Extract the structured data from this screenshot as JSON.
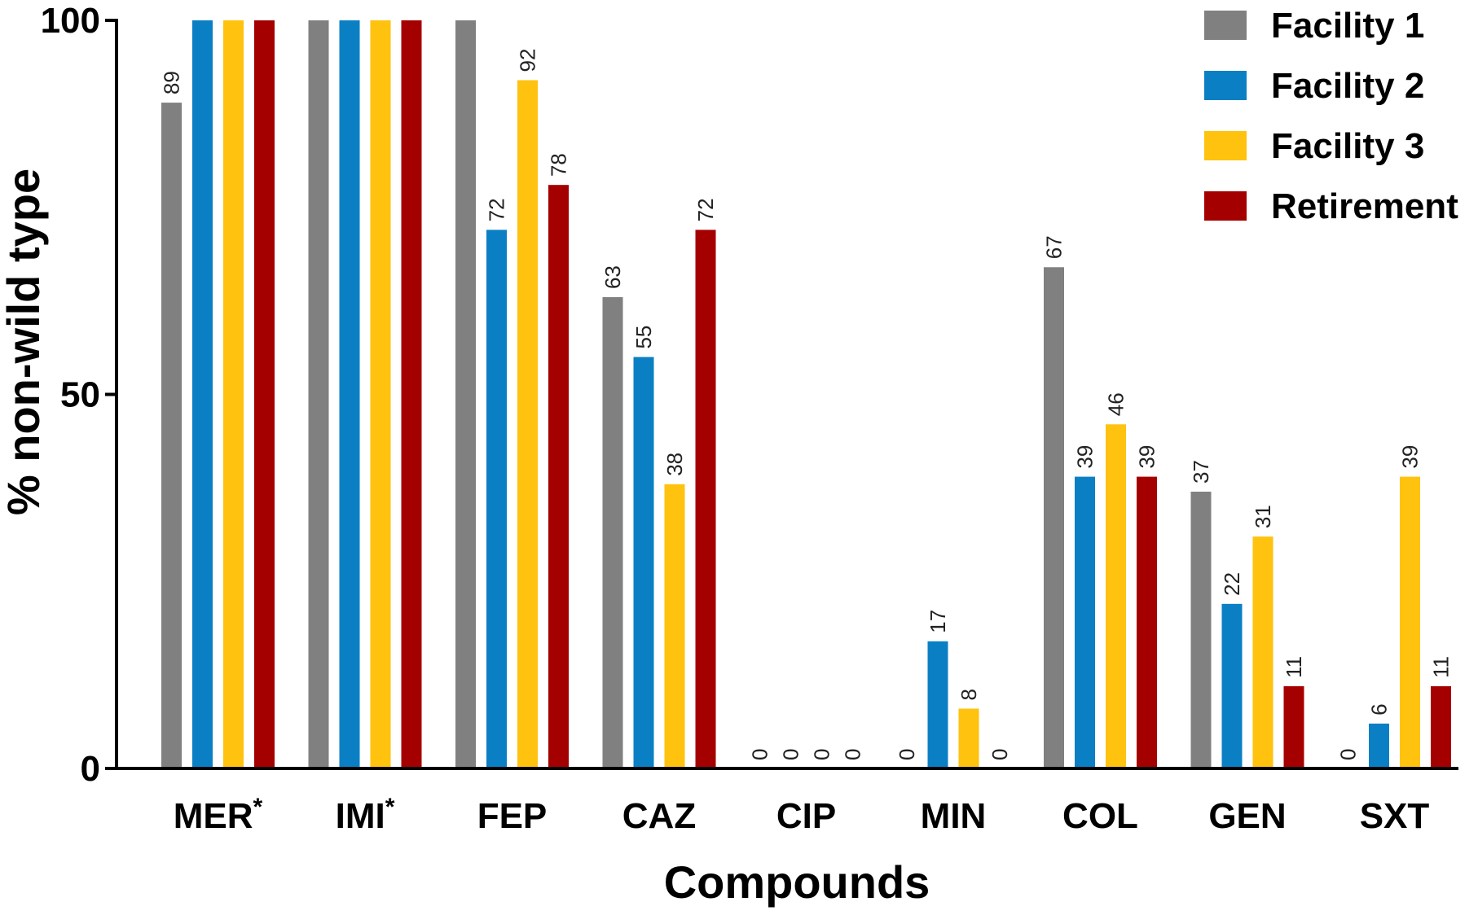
{
  "chart_data": {
    "type": "bar",
    "title": "",
    "xlabel": "Compounds",
    "ylabel": "% non-wild type",
    "ylim": [
      0,
      100
    ],
    "yticks": [
      0,
      50,
      100
    ],
    "grid": false,
    "legend_position": "top-right",
    "categories": [
      "MER",
      "IMI",
      "FEP",
      "CAZ",
      "CIP",
      "MIN",
      "COL",
      "GEN",
      "SXT"
    ],
    "category_marks": [
      "*",
      "*",
      "",
      "",
      "",
      "",
      "",
      "",
      ""
    ],
    "series": [
      {
        "name": "Facility 1",
        "color": "#808080",
        "values": [
          89,
          100,
          100,
          63,
          0,
          0,
          67,
          37,
          0
        ],
        "labels": [
          "89",
          "",
          "",
          "63",
          "0",
          "0",
          "67",
          "37",
          "0"
        ]
      },
      {
        "name": "Facility 2",
        "color": "#0B7FC4",
        "values": [
          100,
          100,
          72,
          55,
          0,
          17,
          39,
          22,
          6
        ],
        "labels": [
          "",
          "",
          "72",
          "55",
          "0",
          "17",
          "39",
          "22",
          "6"
        ]
      },
      {
        "name": "Facility 3",
        "color": "#FFC20E",
        "values": [
          100,
          100,
          92,
          38,
          0,
          8,
          46,
          31,
          39
        ],
        "labels": [
          "",
          "",
          "92",
          "38",
          "0",
          "8",
          "46",
          "31",
          "39"
        ]
      },
      {
        "name": "Retirement",
        "color": "#A50000",
        "values": [
          100,
          100,
          78,
          72,
          0,
          0,
          39,
          11,
          11
        ],
        "labels": [
          "",
          "",
          "78",
          "72",
          "0",
          "0",
          "39",
          "11",
          "11"
        ]
      }
    ]
  }
}
